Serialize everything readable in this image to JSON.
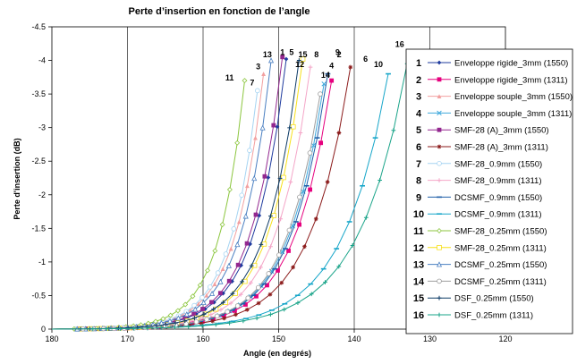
{
  "chart_data": {
    "type": "line",
    "title": "Perte d’insertion en fonction de l’angle",
    "xlabel": "Angle (en degrés)",
    "ylabel": "Perte d'insertion (dB)",
    "xlim": [
      180,
      120
    ],
    "ylim": [
      0,
      -4.5
    ],
    "x_reversed": true,
    "y_reversed": true,
    "x_ticks": [
      "180",
      "170",
      "160",
      "150",
      "140",
      "130",
      "120"
    ],
    "y_ticks": [
      "0",
      "-0.5",
      "-1",
      "-1.5",
      "-2",
      "-2.5",
      "-3",
      "-3.5",
      "-4",
      "-4.5"
    ],
    "grid": "vertical",
    "legend_position": "right",
    "series": [
      {
        "num": "1",
        "name": "Enveloppe rigide_3mm (1550)",
        "color": "#1f3b9e",
        "marker": "diamond",
        "end": [
          149,
          -4.02
        ],
        "label_pos": [
          149.5,
          -4.08
        ]
      },
      {
        "num": "2",
        "name": "Enveloppe rigide_3mm (1311)",
        "color": "#e6007e",
        "marker": "square",
        "end": [
          143,
          -3.7
        ],
        "label_pos": [
          142,
          -4.05
        ]
      },
      {
        "num": "3",
        "name": "Enveloppe souple_3mm (1550)",
        "color": "#f2a0a0",
        "marker": "triangle",
        "end": [
          152,
          -3.8
        ],
        "label_pos": [
          152.7,
          -3.87
        ]
      },
      {
        "num": "4",
        "name": "Enveloppe souple_3mm (1311)",
        "color": "#3fa9dc",
        "marker": "x",
        "end": [
          144,
          -3.65
        ],
        "label_pos": [
          143,
          -3.88
        ]
      },
      {
        "num": "5",
        "name": "SMF-28 (A)_3mm (1550)",
        "color": "#93278f",
        "marker": "square",
        "end": [
          149.5,
          -4.05
        ],
        "label_pos": [
          148.3,
          -4.08
        ]
      },
      {
        "num": "6",
        "name": "SMF-28 (A)_3mm (1311)",
        "color": "#8b1a1a",
        "marker": "asterisk",
        "end": [
          140.5,
          -3.9
        ],
        "label_pos": [
          138.5,
          -3.98
        ]
      },
      {
        "num": "7",
        "name": "SMF-28_0.9mm (1550)",
        "color": "#a6d4f2",
        "marker": "circle",
        "end": [
          152.8,
          -3.55
        ],
        "label_pos": [
          153.5,
          -3.63
        ]
      },
      {
        "num": "8",
        "name": "SMF-28_0.9mm (1311)",
        "color": "#f4a6c8",
        "marker": "plus",
        "end": [
          145.8,
          -3.9
        ],
        "label_pos": [
          145,
          -4.05
        ]
      },
      {
        "num": "9",
        "name": "DCSMF_0.9mm (1550)",
        "color": "#1f5fa8",
        "marker": "dash",
        "end": [
          143.5,
          -3.8
        ],
        "label_pos": [
          142.2,
          -4.08
        ]
      },
      {
        "num": "10",
        "name": "DCSMF_0.9mm (1311)",
        "color": "#17a6c9",
        "marker": "dash",
        "end": [
          135.5,
          -3.8
        ],
        "label_pos": [
          136.8,
          -3.9
        ]
      },
      {
        "num": "11",
        "name": "SMF-28_0.25mm (1550)",
        "color": "#8cc63f",
        "marker": "diamond-open",
        "end": [
          154.5,
          -3.7
        ],
        "label_pos": [
          156.5,
          -3.7
        ]
      },
      {
        "num": "12",
        "name": "SMF-28_0.25mm (1311)",
        "color": "#f7e01a",
        "marker": "square-open",
        "end": [
          146.8,
          -4.02
        ],
        "label_pos": [
          147.2,
          -3.9
        ]
      },
      {
        "num": "13",
        "name": "DCSMF_0.25mm (1550)",
        "color": "#4a7fc1",
        "marker": "triangle-open",
        "end": [
          151,
          -4.0
        ],
        "label_pos": [
          151.5,
          -4.05
        ]
      },
      {
        "num": "14",
        "name": "DCSMF_0.25mm (1311)",
        "color": "#9e9e9e",
        "marker": "circle",
        "end": [
          144.5,
          -3.5
        ],
        "label_pos": [
          143.8,
          -3.74
        ]
      },
      {
        "num": "15",
        "name": "DSF_0.25mm (1550)",
        "color": "#0d3b66",
        "marker": "plus",
        "end": [
          147.3,
          -4.0
        ],
        "label_pos": [
          146.8,
          -4.05
        ]
      },
      {
        "num": "16",
        "name": "DSF_0.25mm (1311)",
        "color": "#1aa489",
        "marker": "plus",
        "end": [
          133,
          -3.95
        ],
        "label_pos": [
          134,
          -4.2
        ]
      }
    ]
  }
}
